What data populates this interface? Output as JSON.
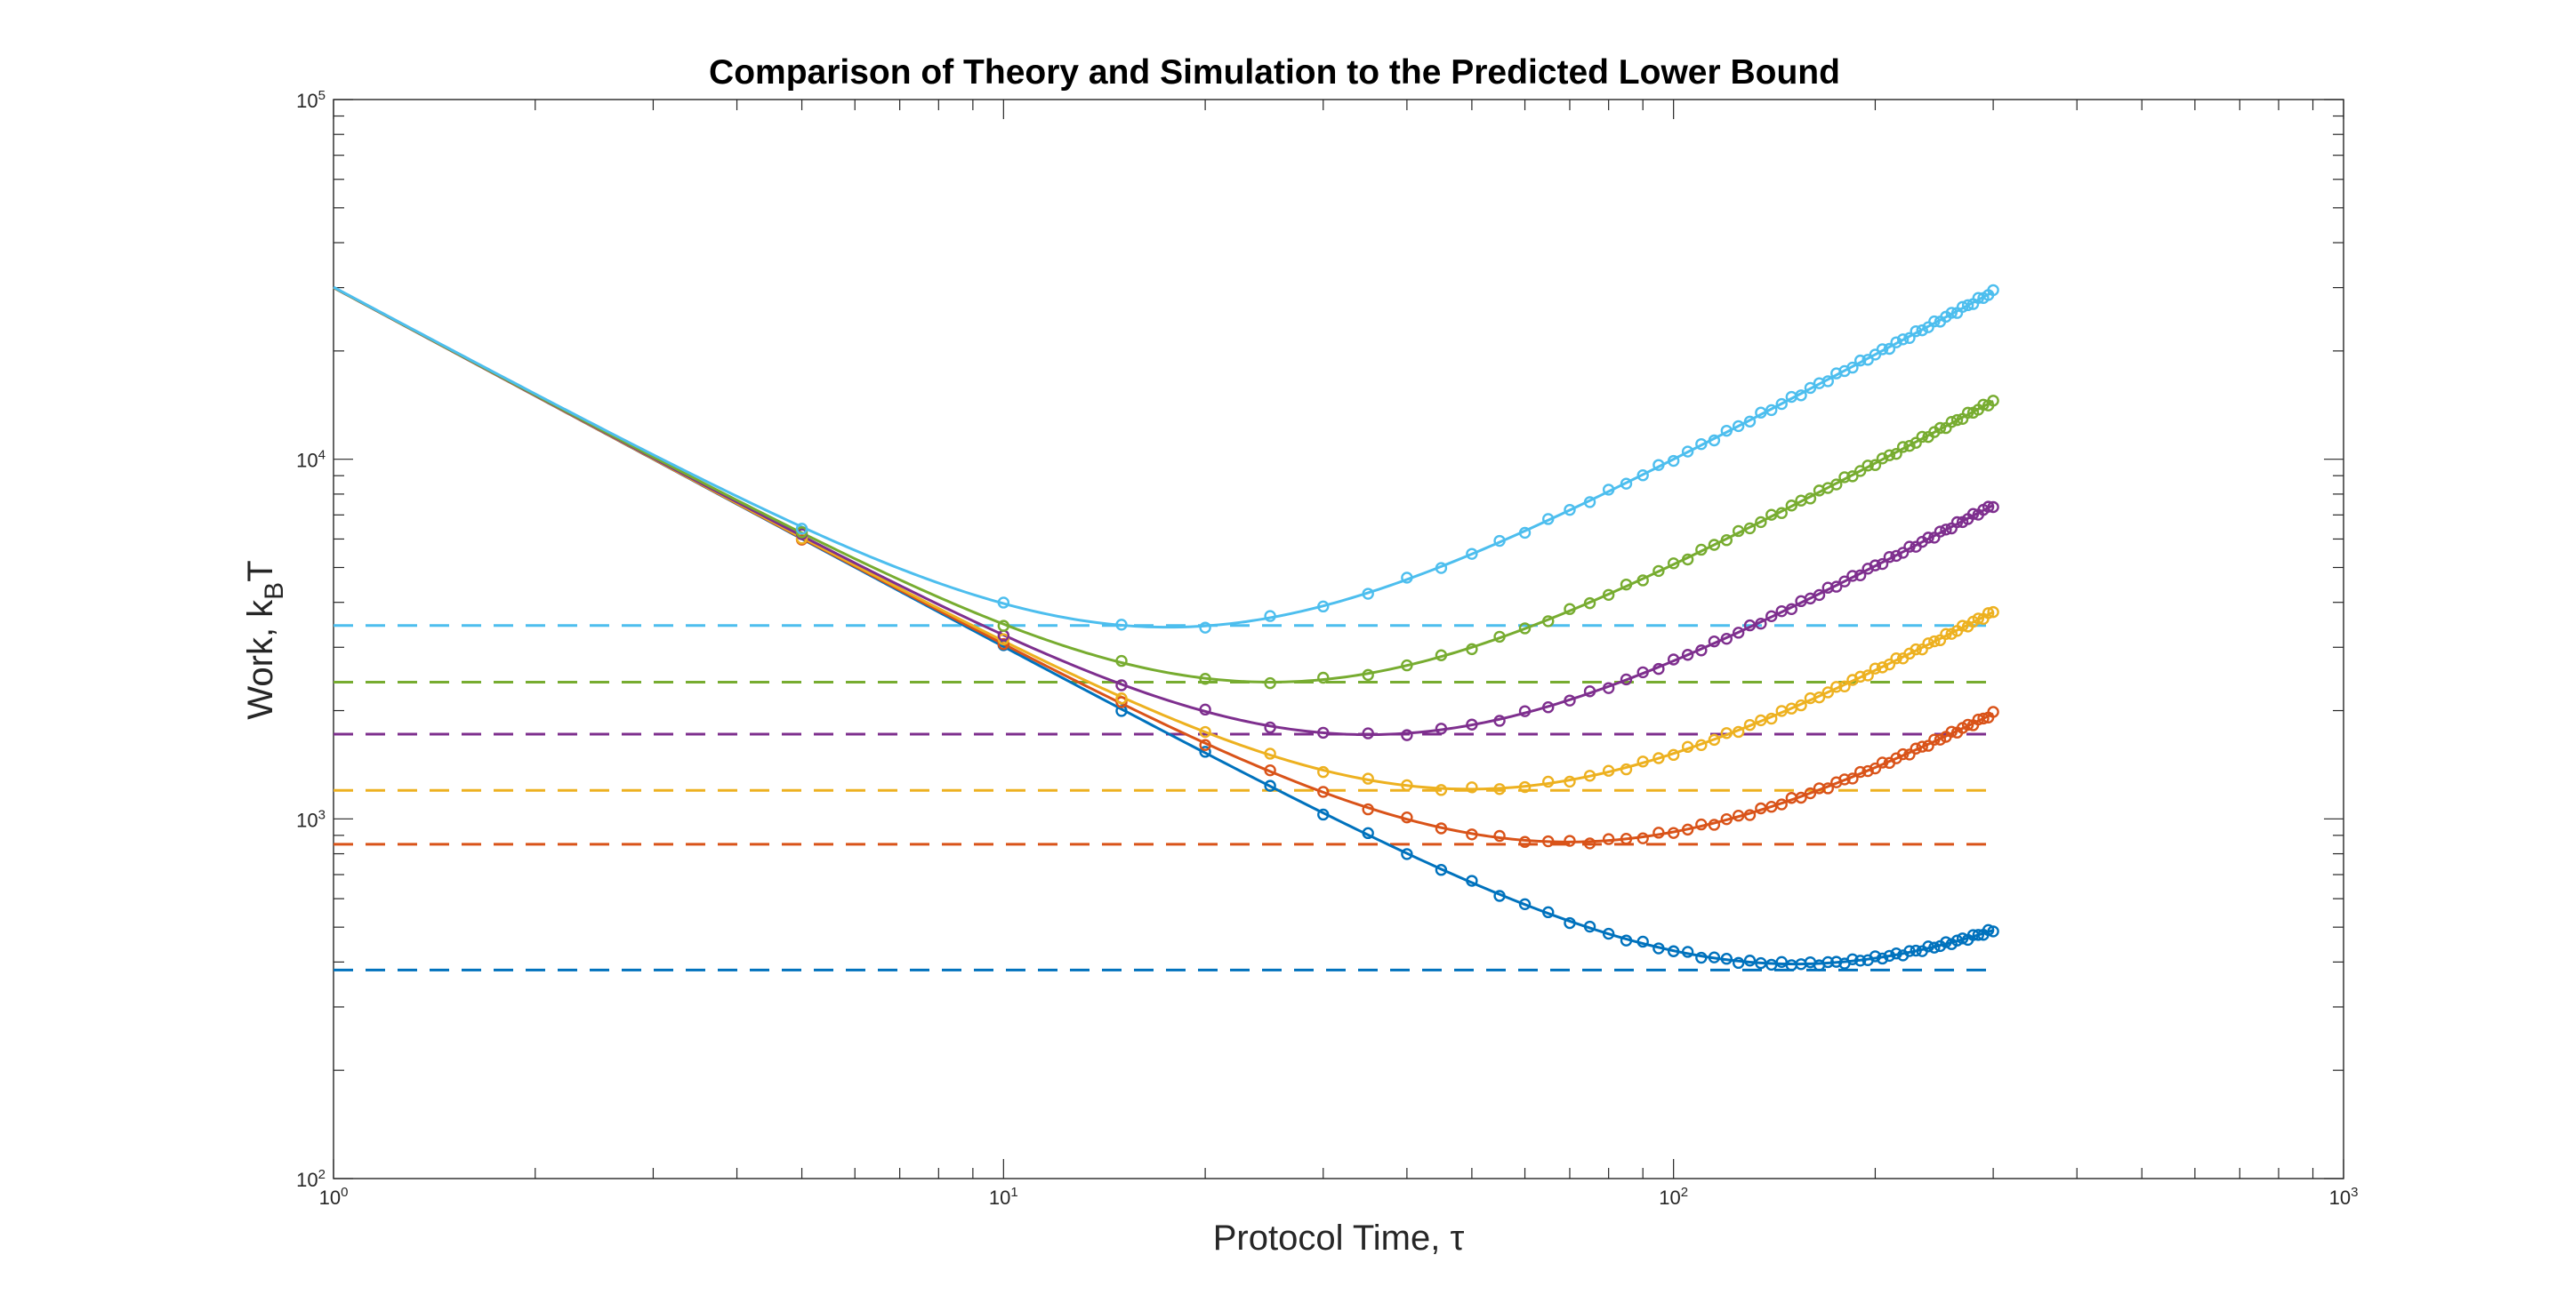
{
  "chart_data": {
    "type": "line",
    "title": "Comparison of Theory and Simulation to the Predicted Lower Bound",
    "xlabel": "Protocol Time, τ",
    "ylabel_main": "Work, k",
    "ylabel_sub": "B",
    "ylabel_tail": "T",
    "xscale": "log",
    "yscale": "log",
    "xlim": [
      1,
      1000
    ],
    "ylim": [
      100,
      100000
    ],
    "grid": false,
    "legend": "none",
    "x_tick_labels": [
      {
        "base": "10",
        "exp": "0"
      },
      {
        "base": "10",
        "exp": "1"
      },
      {
        "base": "10",
        "exp": "2"
      },
      {
        "base": "10",
        "exp": "3"
      }
    ],
    "y_tick_labels": [
      {
        "base": "10",
        "exp": "2"
      },
      {
        "base": "10",
        "exp": "3"
      },
      {
        "base": "10",
        "exp": "4"
      },
      {
        "base": "10",
        "exp": "5"
      }
    ],
    "series": [
      {
        "color": "#0072BD",
        "bound": 380,
        "A": 30000,
        "B": 1.3,
        "marker_x_start": 10
      },
      {
        "color": "#D95319",
        "bound": 850,
        "A": 30000,
        "B": 6.2,
        "marker_x_start": 5
      },
      {
        "color": "#EDB120",
        "bound": 1200,
        "A": 30000,
        "B": 12.2,
        "marker_x_start": 5
      },
      {
        "color": "#7E2F8E",
        "bound": 1720,
        "A": 30000,
        "B": 24.5,
        "marker_x_start": 5
      },
      {
        "color": "#77AC30",
        "bound": 2400,
        "A": 30000,
        "B": 48,
        "marker_x_start": 5
      },
      {
        "color": "#4DBEEE",
        "bound": 3450,
        "A": 30000,
        "B": 97,
        "marker_x_start": 5
      }
    ],
    "x_max_data": 300
  }
}
